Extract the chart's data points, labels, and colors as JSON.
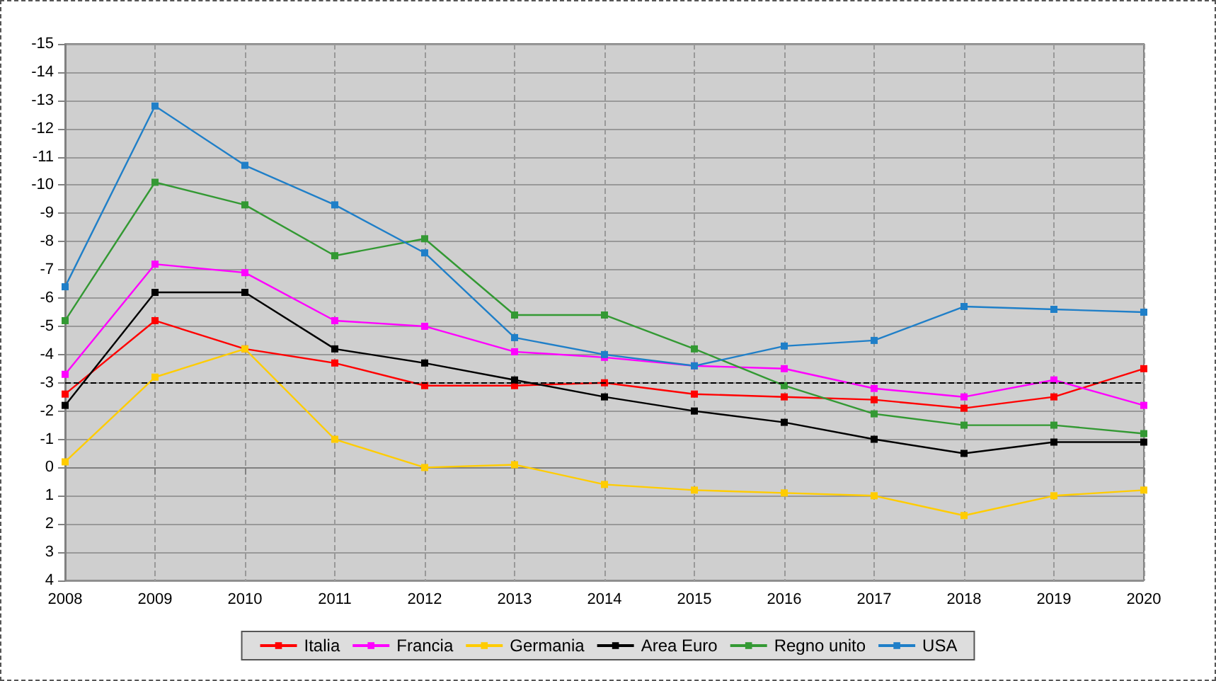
{
  "chart_data": {
    "type": "line",
    "categories": [
      "2008",
      "2009",
      "2010",
      "2011",
      "2012",
      "2013",
      "2014",
      "2015",
      "2016",
      "2017",
      "2018",
      "2019",
      "2020"
    ],
    "series": [
      {
        "name": "Italia",
        "color": "#ff0000",
        "values": [
          -2.6,
          -5.2,
          -4.2,
          -3.7,
          -2.9,
          -2.9,
          -3.0,
          -2.6,
          -2.5,
          -2.4,
          -2.1,
          -2.5,
          -3.5
        ]
      },
      {
        "name": "Francia",
        "color": "#ff00ff",
        "values": [
          -3.3,
          -7.2,
          -6.9,
          -5.2,
          -5.0,
          -4.1,
          -3.9,
          -3.6,
          -3.5,
          -2.8,
          -2.5,
          -3.1,
          -2.2
        ]
      },
      {
        "name": "Germania",
        "color": "#ffcc00",
        "values": [
          -0.2,
          -3.2,
          -4.2,
          -1.0,
          0.0,
          -0.1,
          0.6,
          0.8,
          0.9,
          1.0,
          1.7,
          1.0,
          0.8
        ]
      },
      {
        "name": "Area Euro",
        "color": "#000000",
        "values": [
          -2.2,
          -6.2,
          -6.2,
          -4.2,
          -3.7,
          -3.1,
          -2.5,
          -2.0,
          -1.6,
          -1.0,
          -0.5,
          -0.9,
          -0.9
        ]
      },
      {
        "name": "Regno unito",
        "color": "#339933",
        "values": [
          -5.2,
          -10.1,
          -9.3,
          -7.5,
          -8.1,
          -5.4,
          -5.4,
          -4.2,
          -2.9,
          -1.9,
          -1.5,
          -1.5,
          -1.2
        ]
      },
      {
        "name": "USA",
        "color": "#1f7fc8",
        "values": [
          -6.4,
          -12.8,
          -10.7,
          -9.3,
          -7.6,
          -4.6,
          -4.0,
          -3.6,
          -4.3,
          -4.5,
          -5.7,
          -5.6,
          -5.5
        ]
      }
    ],
    "ylim": [
      4,
      -15
    ],
    "yticks": [
      4,
      3,
      2,
      1,
      0,
      -1,
      -2,
      -3,
      -4,
      -5,
      -6,
      -7,
      -8,
      -9,
      -10,
      -11,
      -12,
      -13,
      -14,
      -15
    ],
    "ref_lines": [
      {
        "axis": "y",
        "value": -3,
        "color": "#000000",
        "line_style": "dashed"
      }
    ],
    "grid": true,
    "legend": "bottom",
    "marker": "square",
    "line_style": "solid"
  }
}
